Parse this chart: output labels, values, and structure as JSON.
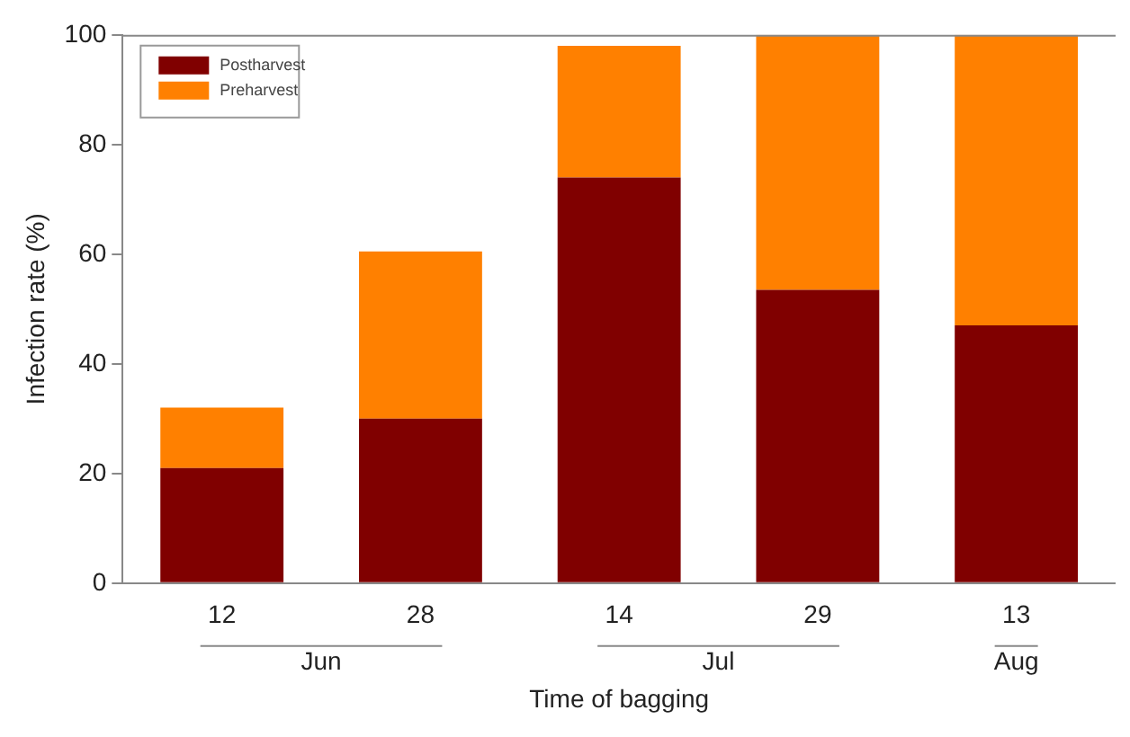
{
  "chart_data": {
    "type": "bar",
    "stacked": true,
    "xlabel": "Time of bagging",
    "ylabel": "Infection rate (%)",
    "categories": [
      "12",
      "28",
      "14",
      "29",
      "13"
    ],
    "series": [
      {
        "name": "Postharvest",
        "color": "#800000",
        "values": [
          21,
          30,
          74,
          53.5,
          47
        ]
      },
      {
        "name": "Preharvest",
        "color": "#ff8000",
        "values": [
          11,
          30.5,
          24,
          46.5,
          53
        ]
      }
    ],
    "ylim": [
      0,
      100
    ],
    "yticks": [
      0,
      20,
      40,
      60,
      80,
      100
    ],
    "grid": false,
    "legend": "top left",
    "annotations": [
      "Jun",
      "Jul",
      "Aug"
    ]
  }
}
